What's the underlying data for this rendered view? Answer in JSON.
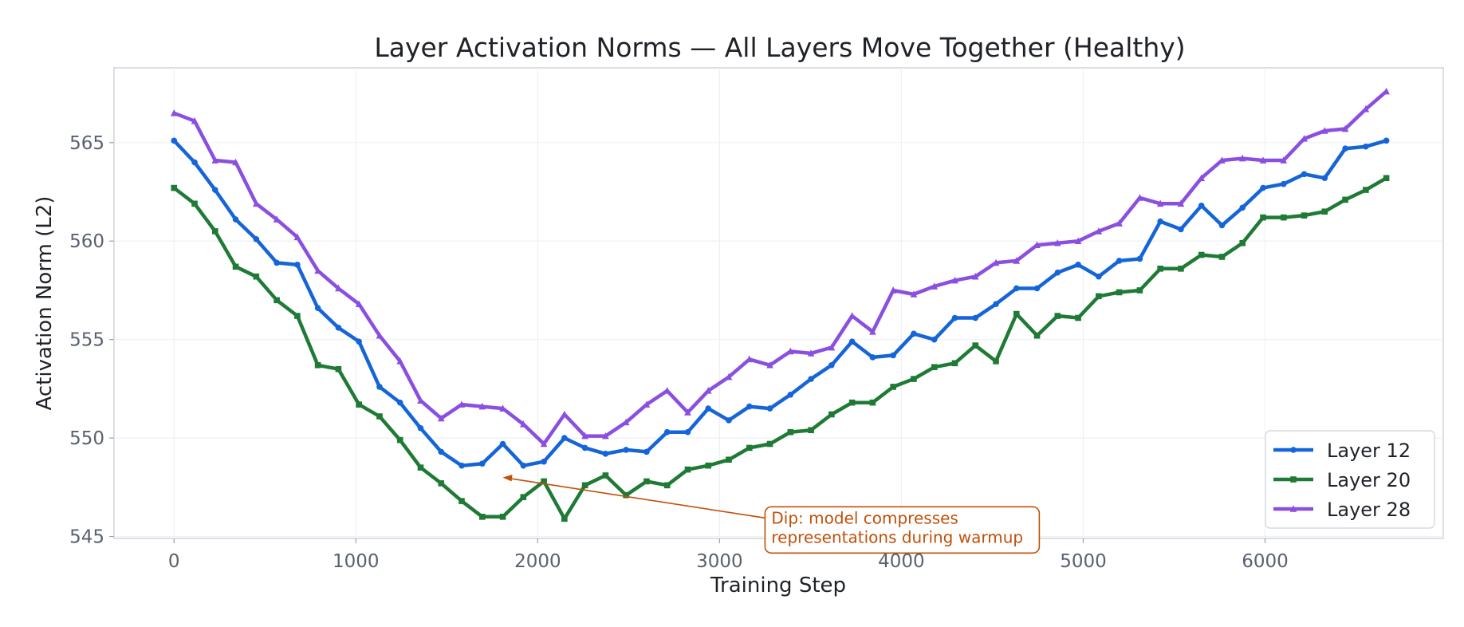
{
  "chart_data": {
    "type": "line",
    "title": "Layer Activation Norms — All Layers Move Together (Healthy)",
    "xlabel": "Training Step",
    "ylabel": "Activation Norm (L2)",
    "xlim": [
      -330,
      6980
    ],
    "ylim": [
      544.9,
      568.8
    ],
    "xticks": [
      0,
      1000,
      2000,
      3000,
      4000,
      5000,
      6000
    ],
    "yticks": [
      545,
      550,
      555,
      560,
      565
    ],
    "grid": true,
    "legend_position": "lower-right",
    "x": [
      0,
      113,
      226,
      339,
      452,
      565,
      678,
      791,
      904,
      1017,
      1130,
      1243,
      1356,
      1469,
      1582,
      1695,
      1808,
      1921,
      2034,
      2147,
      2260,
      2373,
      2486,
      2599,
      2712,
      2825,
      2938,
      3051,
      3164,
      3277,
      3390,
      3503,
      3616,
      3729,
      3842,
      3955,
      4068,
      4181,
      4294,
      4407,
      4520,
      4633,
      4746,
      4859,
      4972,
      5085,
      5198,
      5311,
      5424,
      5537,
      5650,
      5763,
      5876,
      5989,
      6102,
      6215,
      6328,
      6441,
      6554,
      6667
    ],
    "series": [
      {
        "name": "Layer 12",
        "color": "#1565d8",
        "marker": "circle",
        "values": [
          565.1,
          564.0,
          562.6,
          561.1,
          560.1,
          558.9,
          558.8,
          556.6,
          555.6,
          554.9,
          552.6,
          551.8,
          550.5,
          549.3,
          548.6,
          548.7,
          549.7,
          548.6,
          548.8,
          550.0,
          549.5,
          549.2,
          549.4,
          549.3,
          550.3,
          550.3,
          551.5,
          550.9,
          551.6,
          551.5,
          552.2,
          553.0,
          553.7,
          554.9,
          554.1,
          554.2,
          555.3,
          555.0,
          556.1,
          556.1,
          556.8,
          557.6,
          557.6,
          558.4,
          558.8,
          558.2,
          559.0,
          559.1,
          561.0,
          560.6,
          561.8,
          560.8,
          561.7,
          562.7,
          562.9,
          563.4,
          563.2,
          564.7,
          564.8,
          565.1
        ]
      },
      {
        "name": "Layer 20",
        "color": "#1e7a35",
        "marker": "square",
        "values": [
          562.7,
          561.9,
          560.5,
          558.7,
          558.2,
          557.0,
          556.2,
          553.7,
          553.5,
          551.7,
          551.1,
          549.9,
          548.5,
          547.7,
          546.8,
          546.0,
          546.0,
          547.0,
          547.8,
          545.9,
          547.6,
          548.1,
          547.1,
          547.8,
          547.6,
          548.4,
          548.6,
          548.9,
          549.5,
          549.7,
          550.3,
          550.4,
          551.2,
          551.8,
          551.8,
          552.6,
          553.0,
          553.6,
          553.8,
          554.7,
          553.9,
          556.3,
          555.2,
          556.2,
          556.1,
          557.2,
          557.4,
          557.5,
          558.6,
          558.6,
          559.3,
          559.2,
          559.9,
          561.2,
          561.2,
          561.3,
          561.5,
          562.1,
          562.6,
          563.2
        ]
      },
      {
        "name": "Layer 28",
        "color": "#8a4fe0",
        "marker": "triangle",
        "values": [
          566.5,
          566.1,
          564.1,
          564.0,
          561.9,
          561.1,
          560.2,
          558.5,
          557.6,
          556.8,
          555.2,
          553.9,
          551.9,
          551.0,
          551.7,
          551.6,
          551.5,
          550.7,
          549.7,
          551.2,
          550.1,
          550.1,
          550.8,
          551.7,
          552.4,
          551.3,
          552.4,
          553.1,
          554.0,
          553.7,
          554.4,
          554.3,
          554.6,
          556.2,
          555.4,
          557.5,
          557.3,
          557.7,
          558.0,
          558.2,
          558.9,
          559.0,
          559.8,
          559.9,
          560.0,
          560.5,
          560.9,
          562.2,
          561.9,
          561.9,
          563.2,
          564.1,
          564.2,
          564.1,
          564.1,
          565.2,
          565.6,
          565.7,
          566.7,
          567.6
        ]
      }
    ],
    "annotation": {
      "text_lines": [
        "Dip: model compresses",
        "representations during warmup"
      ],
      "target": [
        1808,
        548.0
      ],
      "text_anchor": [
        3250,
        545.9
      ],
      "color": "#c0500a"
    }
  }
}
